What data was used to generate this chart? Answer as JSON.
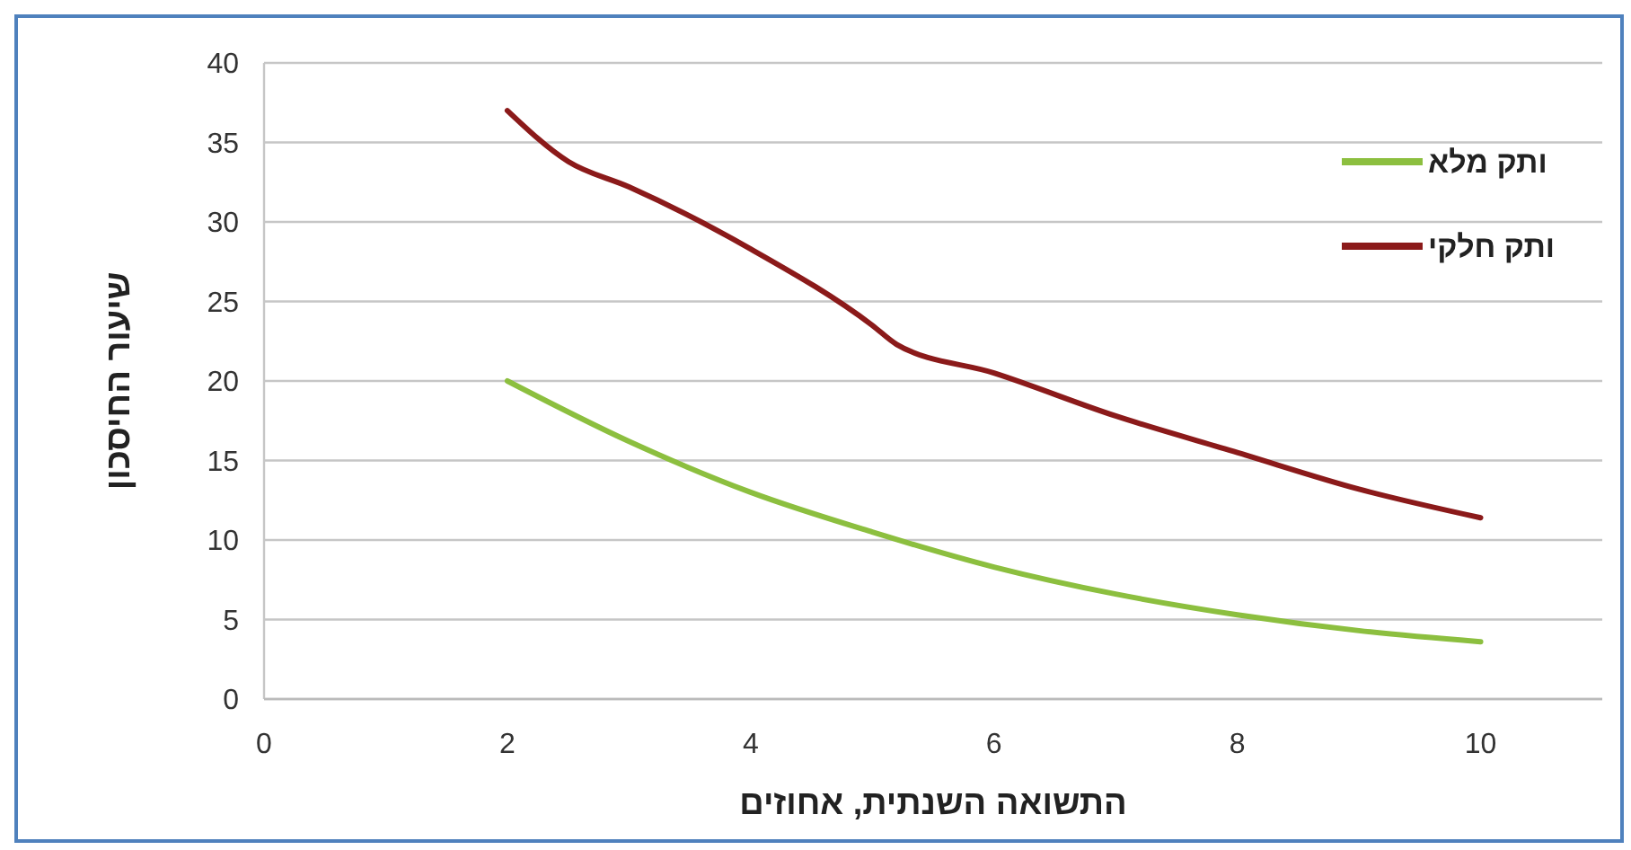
{
  "chart_data": {
    "type": "line",
    "xlabel": "התשואה השנתית, אחוזים",
    "ylabel": "שיעור החיסכון",
    "xlim": [
      0,
      11
    ],
    "xticks": [
      0,
      2,
      4,
      6,
      8,
      10
    ],
    "ylim": [
      0,
      40
    ],
    "yticks": [
      0,
      5,
      10,
      15,
      20,
      25,
      30,
      35,
      40
    ],
    "grid": "y",
    "legend": "top right",
    "marker": "none",
    "series": [
      {
        "name": "ותק מלא",
        "color": "#8cbf3f",
        "x": [
          2,
          3,
          4,
          5,
          6,
          7,
          8,
          9,
          10
        ],
        "values": [
          20,
          16.2,
          13,
          10.5,
          8.3,
          6.6,
          5.3,
          4.3,
          3.6
        ]
      },
      {
        "name": "ותק חלקי",
        "color": "#8b1a1a",
        "x": [
          2,
          2.5,
          3,
          4,
          5,
          5.2,
          6,
          7,
          8,
          9,
          10
        ],
        "values": [
          37,
          33.8,
          32.2,
          28.3,
          23.5,
          22.3,
          20.5,
          17.8,
          15.5,
          13.2,
          11.4
        ]
      }
    ]
  }
}
